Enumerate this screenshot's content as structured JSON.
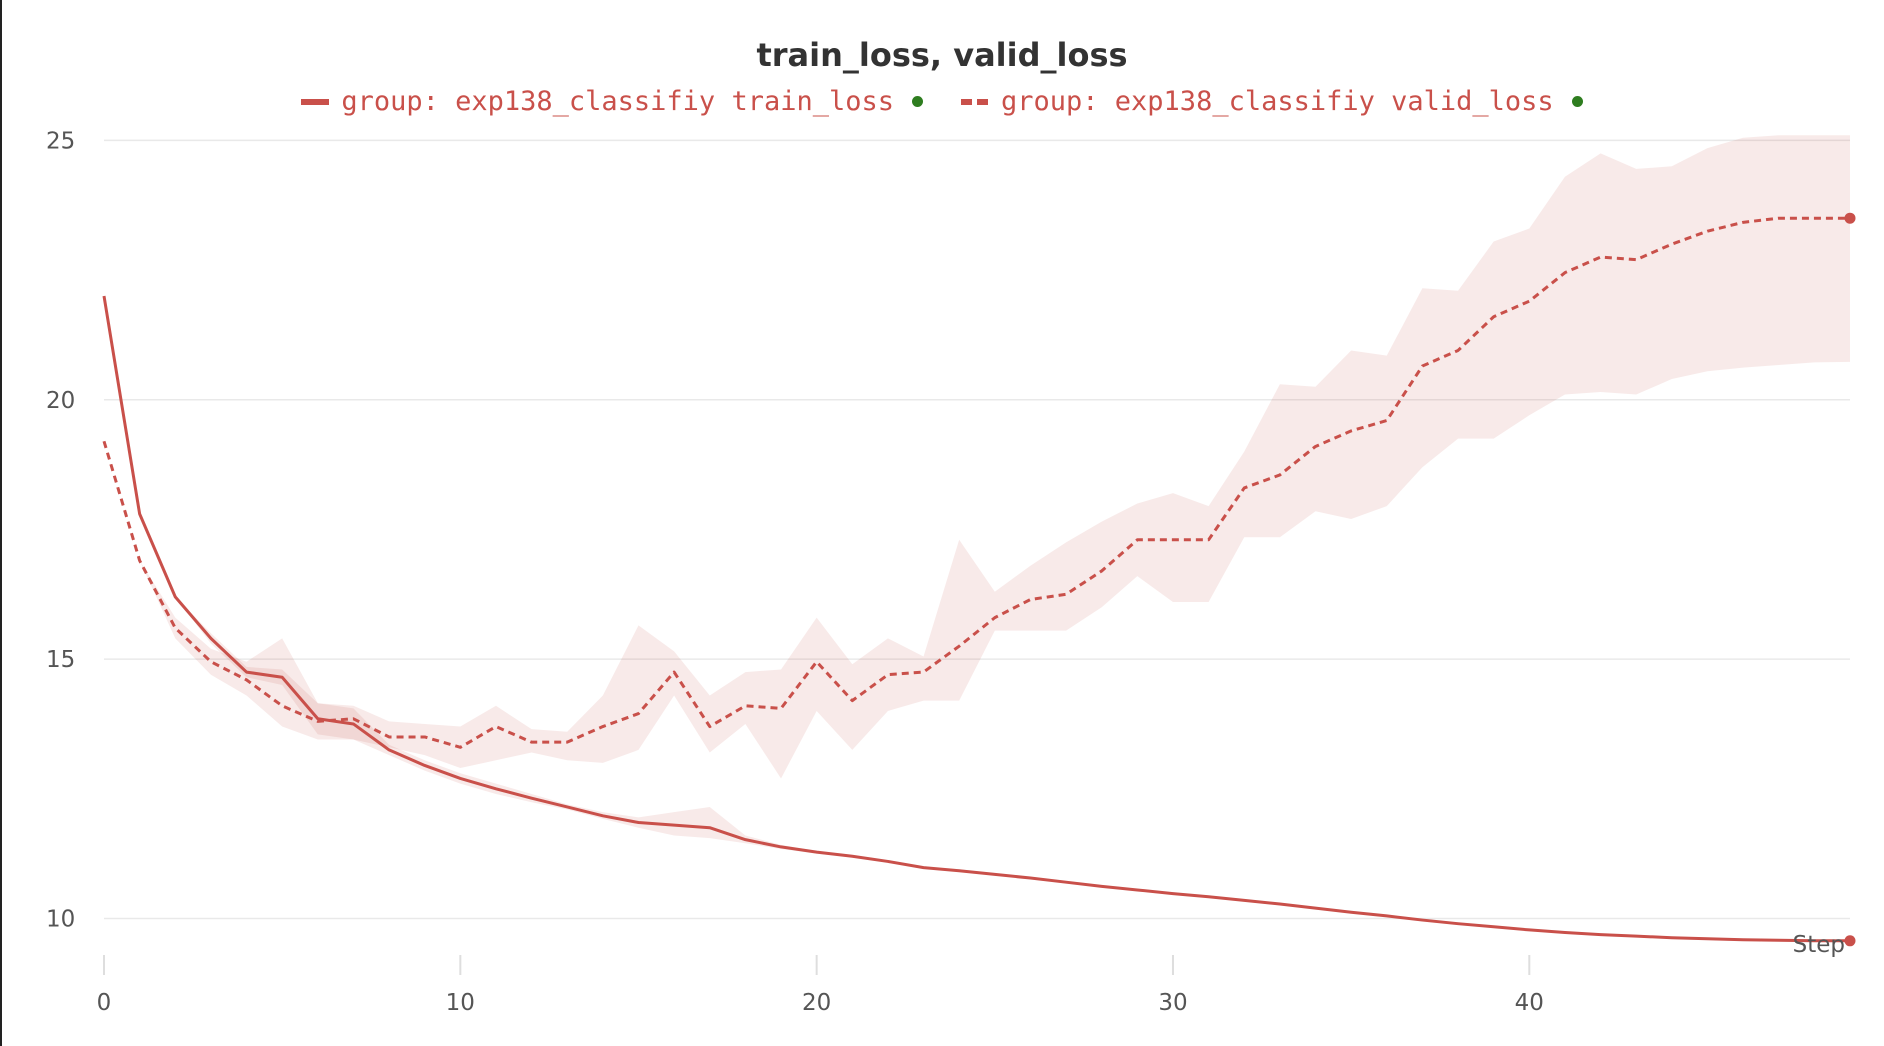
{
  "chart_data": {
    "type": "line",
    "title": "train_loss, valid_loss",
    "xlabel": "Step",
    "ylabel": "",
    "xlim": [
      0,
      49
    ],
    "ylim": [
      9.2,
      25.2
    ],
    "x_ticks": [
      "0",
      "10",
      "20",
      "30",
      "40"
    ],
    "y_ticks": [
      "10",
      "15",
      "20",
      "25"
    ],
    "grid": true,
    "legend_position": "top-center",
    "x": [
      0,
      1,
      2,
      3,
      4,
      5,
      6,
      7,
      8,
      9,
      10,
      11,
      12,
      13,
      14,
      15,
      16,
      17,
      18,
      19,
      20,
      21,
      22,
      23,
      24,
      25,
      26,
      27,
      28,
      29,
      30,
      31,
      32,
      33,
      34,
      35,
      36,
      37,
      38,
      39,
      40,
      41,
      42,
      43,
      44,
      45,
      46,
      47,
      48,
      49
    ],
    "series": [
      {
        "name": "group: exp138_classifiy train_loss",
        "style": "solid",
        "color": "#c9504a",
        "values": [
          22.0,
          17.8,
          16.2,
          15.4,
          14.75,
          14.65,
          13.85,
          13.75,
          13.25,
          12.95,
          12.7,
          12.5,
          12.32,
          12.15,
          11.98,
          11.85,
          11.8,
          11.75,
          11.52,
          11.38,
          11.28,
          11.2,
          11.1,
          10.98,
          10.92,
          10.85,
          10.78,
          10.7,
          10.62,
          10.55,
          10.48,
          10.42,
          10.35,
          10.28,
          10.2,
          10.12,
          10.05,
          9.97,
          9.9,
          9.84,
          9.78,
          9.73,
          9.69,
          9.66,
          9.63,
          9.61,
          9.59,
          9.58,
          9.57,
          9.57
        ],
        "band_upper": [
          22.0,
          17.8,
          16.2,
          15.5,
          14.85,
          14.8,
          14.15,
          14.05,
          13.35,
          13.05,
          12.8,
          12.6,
          12.4,
          12.2,
          12.05,
          11.95,
          12.05,
          12.15,
          11.6,
          11.42,
          11.3,
          11.22,
          11.12,
          11.0,
          10.95,
          10.87,
          10.8,
          10.72,
          10.64,
          10.57,
          10.5,
          10.44,
          10.37,
          10.3,
          10.22,
          10.14,
          10.07,
          9.99,
          9.92,
          9.86,
          9.8,
          9.75,
          9.71,
          9.68,
          9.65,
          9.63,
          9.61,
          9.6,
          9.59,
          9.59
        ],
        "band_lower": [
          22.0,
          17.8,
          16.2,
          15.3,
          14.65,
          14.5,
          13.55,
          13.45,
          13.15,
          12.85,
          12.6,
          12.4,
          12.24,
          12.1,
          11.92,
          11.75,
          11.6,
          11.55,
          11.45,
          11.34,
          11.25,
          11.18,
          11.08,
          10.96,
          10.9,
          10.83,
          10.76,
          10.68,
          10.6,
          10.53,
          10.46,
          10.4,
          10.33,
          10.26,
          10.18,
          10.1,
          10.03,
          9.95,
          9.88,
          9.82,
          9.76,
          9.71,
          9.67,
          9.64,
          9.61,
          9.59,
          9.57,
          9.56,
          9.55,
          9.55
        ]
      },
      {
        "name": "group: exp138_classifiy valid_loss",
        "style": "dashed",
        "color": "#c9504a",
        "values": [
          19.2,
          16.9,
          15.6,
          14.95,
          14.6,
          14.1,
          13.8,
          13.85,
          13.5,
          13.5,
          13.3,
          13.7,
          13.4,
          13.4,
          13.7,
          13.95,
          14.75,
          13.7,
          14.1,
          14.05,
          14.95,
          14.2,
          14.7,
          14.75,
          15.25,
          15.8,
          16.15,
          16.25,
          16.7,
          17.3,
          17.3,
          17.3,
          18.3,
          18.55,
          19.1,
          19.4,
          19.6,
          20.65,
          20.95,
          21.6,
          21.9,
          22.45,
          22.75,
          22.7,
          23.0,
          23.25,
          23.42,
          23.5,
          23.5,
          23.5
        ],
        "band_upper": [
          19.2,
          16.9,
          15.8,
          15.2,
          14.95,
          15.4,
          14.15,
          14.1,
          13.8,
          13.75,
          13.7,
          14.1,
          13.65,
          13.6,
          14.3,
          15.65,
          15.15,
          14.3,
          14.75,
          14.8,
          15.8,
          14.9,
          15.4,
          15.05,
          17.3,
          16.3,
          16.8,
          17.25,
          17.65,
          18.0,
          18.2,
          17.95,
          19.0,
          20.3,
          20.25,
          20.95,
          20.85,
          22.15,
          22.1,
          23.05,
          23.3,
          24.3,
          24.75,
          24.45,
          24.5,
          24.85,
          25.05,
          25.1,
          25.1,
          25.1
        ],
        "band_lower": [
          19.2,
          16.9,
          15.4,
          14.7,
          14.3,
          13.7,
          13.45,
          13.45,
          13.3,
          13.15,
          12.9,
          13.05,
          13.2,
          13.05,
          13.0,
          13.25,
          14.3,
          13.2,
          13.75,
          12.7,
          14.0,
          13.25,
          14.0,
          14.2,
          14.2,
          15.55,
          15.55,
          15.55,
          16.0,
          16.6,
          16.1,
          16.1,
          17.35,
          17.35,
          17.85,
          17.7,
          17.95,
          18.7,
          19.25,
          19.25,
          19.7,
          20.1,
          20.15,
          20.1,
          20.4,
          20.55,
          20.62,
          20.67,
          20.72,
          20.73
        ]
      }
    ]
  }
}
